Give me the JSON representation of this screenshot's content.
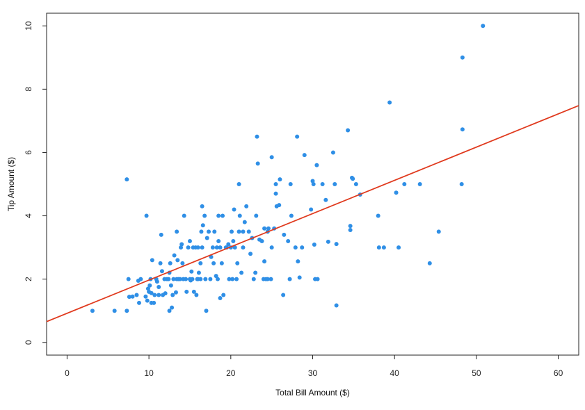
{
  "chart_data": {
    "type": "scatter",
    "title": "",
    "xlabel": "Total Bill Amount ($)",
    "ylabel": "Tip Amount ($)",
    "xlim": [
      -2.5,
      62.5
    ],
    "ylim": [
      -0.4,
      10.4
    ],
    "xticks": [
      "0",
      "10",
      "20",
      "30",
      "40",
      "50",
      "60"
    ],
    "yticks": [
      "0",
      "2",
      "4",
      "6",
      "8",
      "10"
    ],
    "grid": false,
    "legend": "none",
    "point_color": "#2f8fe6",
    "line_color": "#e03a1e",
    "regression_line": {
      "intercept": 0.92,
      "slope": 0.105
    },
    "points": [
      [
        3.1,
        1.0
      ],
      [
        5.8,
        1.0
      ],
      [
        7.3,
        1.0
      ],
      [
        7.5,
        2.0
      ],
      [
        7.3,
        5.15
      ],
      [
        7.6,
        1.44
      ],
      [
        8.0,
        1.45
      ],
      [
        8.5,
        1.5
      ],
      [
        8.7,
        1.95
      ],
      [
        9.0,
        2.0
      ],
      [
        8.8,
        1.25
      ],
      [
        9.6,
        1.45
      ],
      [
        9.8,
        1.32
      ],
      [
        9.9,
        1.7
      ],
      [
        9.7,
        4.0
      ],
      [
        10.0,
        1.6
      ],
      [
        10.1,
        1.8
      ],
      [
        10.2,
        2.0
      ],
      [
        10.3,
        1.25
      ],
      [
        10.3,
        1.56
      ],
      [
        10.4,
        2.6
      ],
      [
        10.6,
        1.25
      ],
      [
        10.7,
        1.5
      ],
      [
        10.9,
        2.0
      ],
      [
        11.0,
        1.92
      ],
      [
        11.2,
        1.5
      ],
      [
        11.2,
        1.75
      ],
      [
        11.4,
        2.5
      ],
      [
        11.5,
        3.4
      ],
      [
        11.6,
        2.25
      ],
      [
        11.7,
        1.5
      ],
      [
        11.9,
        2.0
      ],
      [
        12.0,
        1.55
      ],
      [
        12.2,
        2.0
      ],
      [
        12.4,
        2.0
      ],
      [
        12.5,
        1.0
      ],
      [
        12.5,
        2.2
      ],
      [
        12.6,
        2.5
      ],
      [
        12.7,
        1.8
      ],
      [
        12.8,
        1.1
      ],
      [
        12.9,
        1.5
      ],
      [
        13.0,
        2.0
      ],
      [
        13.1,
        2.75
      ],
      [
        13.3,
        1.58
      ],
      [
        13.4,
        2.0
      ],
      [
        13.4,
        3.5
      ],
      [
        13.5,
        2.6
      ],
      [
        13.6,
        2.0
      ],
      [
        13.8,
        2.0
      ],
      [
        13.9,
        3.0
      ],
      [
        14.0,
        3.1
      ],
      [
        14.1,
        2.5
      ],
      [
        14.2,
        2.0
      ],
      [
        14.3,
        4.0
      ],
      [
        14.5,
        2.0
      ],
      [
        14.6,
        1.6
      ],
      [
        14.8,
        3.0
      ],
      [
        15.0,
        2.0
      ],
      [
        15.0,
        3.2
      ],
      [
        15.1,
        1.96
      ],
      [
        15.2,
        2.24
      ],
      [
        15.3,
        2.0
      ],
      [
        15.4,
        3.0
      ],
      [
        15.5,
        1.6
      ],
      [
        15.7,
        3.0
      ],
      [
        15.8,
        1.5
      ],
      [
        15.9,
        2.0
      ],
      [
        16.0,
        2.0
      ],
      [
        16.0,
        3.0
      ],
      [
        16.1,
        2.2
      ],
      [
        16.3,
        2.0
      ],
      [
        16.3,
        2.5
      ],
      [
        16.4,
        3.5
      ],
      [
        16.5,
        3.0
      ],
      [
        16.5,
        4.3
      ],
      [
        16.6,
        3.7
      ],
      [
        16.8,
        4.0
      ],
      [
        16.9,
        2.0
      ],
      [
        17.0,
        1.0
      ],
      [
        17.1,
        3.3
      ],
      [
        17.3,
        3.5
      ],
      [
        17.5,
        2.0
      ],
      [
        17.6,
        2.7
      ],
      [
        17.8,
        3.0
      ],
      [
        17.9,
        2.5
      ],
      [
        18.0,
        3.5
      ],
      [
        18.2,
        2.1
      ],
      [
        18.3,
        3.0
      ],
      [
        18.4,
        2.0
      ],
      [
        18.5,
        3.2
      ],
      [
        18.5,
        4.0
      ],
      [
        18.7,
        3.0
      ],
      [
        18.7,
        1.4
      ],
      [
        18.9,
        2.5
      ],
      [
        19.0,
        4.0
      ],
      [
        19.1,
        1.5
      ],
      [
        19.4,
        3.0
      ],
      [
        19.5,
        3.0
      ],
      [
        19.7,
        3.1
      ],
      [
        19.8,
        2.0
      ],
      [
        20.0,
        3.0
      ],
      [
        20.1,
        3.5
      ],
      [
        20.2,
        2.0
      ],
      [
        20.3,
        3.2
      ],
      [
        20.4,
        4.2
      ],
      [
        20.5,
        3.0
      ],
      [
        20.7,
        2.0
      ],
      [
        20.8,
        2.5
      ],
      [
        21.0,
        3.5
      ],
      [
        21.0,
        5.0
      ],
      [
        21.1,
        4.0
      ],
      [
        21.3,
        2.2
      ],
      [
        21.5,
        3.0
      ],
      [
        21.5,
        3.5
      ],
      [
        21.7,
        3.8
      ],
      [
        21.9,
        4.3
      ],
      [
        22.2,
        3.5
      ],
      [
        22.4,
        2.8
      ],
      [
        22.6,
        3.3
      ],
      [
        22.8,
        2.0
      ],
      [
        23.0,
        2.2
      ],
      [
        23.1,
        4.0
      ],
      [
        23.2,
        6.5
      ],
      [
        23.3,
        5.65
      ],
      [
        23.5,
        3.25
      ],
      [
        23.8,
        3.2
      ],
      [
        24.0,
        2.0
      ],
      [
        24.1,
        3.6
      ],
      [
        24.1,
        2.56
      ],
      [
        24.3,
        2.0
      ],
      [
        24.5,
        2.0
      ],
      [
        24.5,
        3.5
      ],
      [
        24.6,
        3.6
      ],
      [
        24.9,
        2.0
      ],
      [
        25.0,
        3.0
      ],
      [
        25.0,
        5.85
      ],
      [
        25.3,
        3.6
      ],
      [
        25.5,
        4.7
      ],
      [
        25.5,
        5.0
      ],
      [
        25.6,
        4.3
      ],
      [
        25.9,
        4.34
      ],
      [
        26.0,
        5.15
      ],
      [
        26.4,
        1.5
      ],
      [
        26.5,
        3.4
      ],
      [
        27.0,
        3.2
      ],
      [
        27.2,
        2.0
      ],
      [
        27.3,
        5.0
      ],
      [
        27.4,
        4.0
      ],
      [
        27.9,
        3.0
      ],
      [
        28.1,
        6.5
      ],
      [
        28.2,
        2.56
      ],
      [
        28.4,
        2.05
      ],
      [
        28.7,
        3.0
      ],
      [
        29.0,
        5.92
      ],
      [
        29.8,
        4.2
      ],
      [
        30.0,
        5.1
      ],
      [
        30.1,
        5.0
      ],
      [
        30.2,
        3.09
      ],
      [
        30.3,
        2.0
      ],
      [
        30.5,
        5.6
      ],
      [
        30.6,
        2.0
      ],
      [
        31.2,
        5.0
      ],
      [
        31.6,
        4.5
      ],
      [
        31.9,
        3.18
      ],
      [
        32.5,
        6.0
      ],
      [
        32.7,
        5.0
      ],
      [
        32.9,
        1.17
      ],
      [
        32.9,
        3.11
      ],
      [
        34.3,
        6.7
      ],
      [
        34.6,
        3.68
      ],
      [
        34.6,
        3.55
      ],
      [
        34.8,
        5.2
      ],
      [
        34.9,
        5.17
      ],
      [
        35.3,
        5.0
      ],
      [
        35.8,
        4.67
      ],
      [
        38.0,
        4.0
      ],
      [
        38.1,
        3.0
      ],
      [
        38.7,
        3.0
      ],
      [
        39.4,
        7.58
      ],
      [
        40.2,
        4.73
      ],
      [
        40.5,
        3.0
      ],
      [
        41.2,
        5.0
      ],
      [
        43.1,
        5.0
      ],
      [
        44.3,
        2.5
      ],
      [
        45.4,
        3.5
      ],
      [
        48.2,
        5.0
      ],
      [
        48.3,
        6.73
      ],
      [
        48.3,
        9.0
      ],
      [
        50.8,
        10.0
      ]
    ]
  }
}
